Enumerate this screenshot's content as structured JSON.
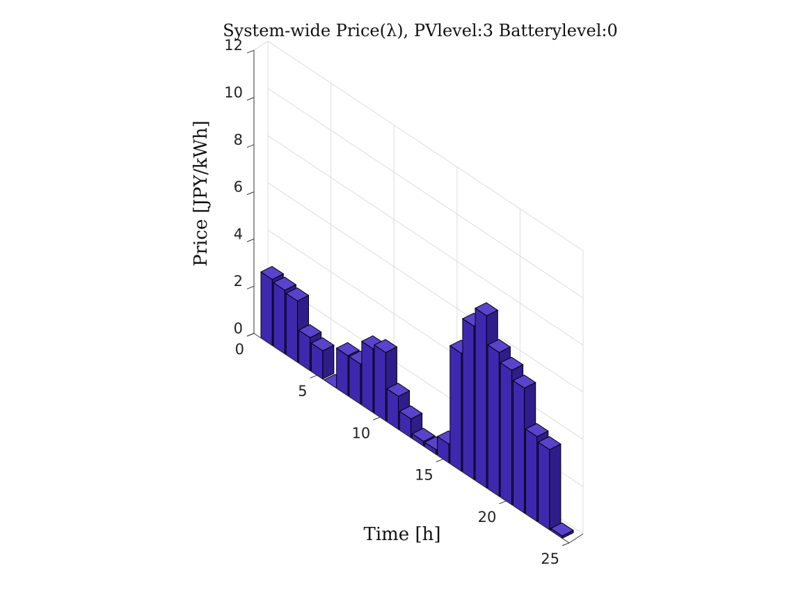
{
  "chart_data": {
    "type": "bar",
    "title": "System-wide Price(λ), PVlevel:3 Batterylevel:0",
    "xlabel": "Time [h]",
    "ylabel": "Price [JPY/kWh]",
    "x": [
      1,
      2,
      3,
      4,
      5,
      6,
      7,
      8,
      9,
      10,
      11,
      12,
      13,
      14,
      15,
      16,
      17,
      18,
      19,
      20,
      21,
      22,
      23,
      24
    ],
    "values": [
      2.8,
      2.7,
      2.6,
      1.4,
      1.2,
      0.0,
      1.7,
      1.7,
      2.7,
      2.9,
      1.4,
      0.8,
      0.2,
      0.2,
      0.8,
      5.0,
      6.5,
      7.3,
      6.1,
      5.7,
      5.3,
      3.6,
      3.4,
      0.1
    ],
    "xlim": [
      0,
      25
    ],
    "ylim": [
      0,
      12
    ],
    "xticks": [
      "0",
      "5",
      "10",
      "15",
      "20",
      "25"
    ],
    "yticks": [
      "0",
      "2",
      "4",
      "6",
      "8",
      "10",
      "12"
    ],
    "grid": true,
    "colors": {
      "bar": "#3f28b0",
      "bar_side": "#2f1d8a",
      "bar_top": "#5a43cc"
    }
  }
}
